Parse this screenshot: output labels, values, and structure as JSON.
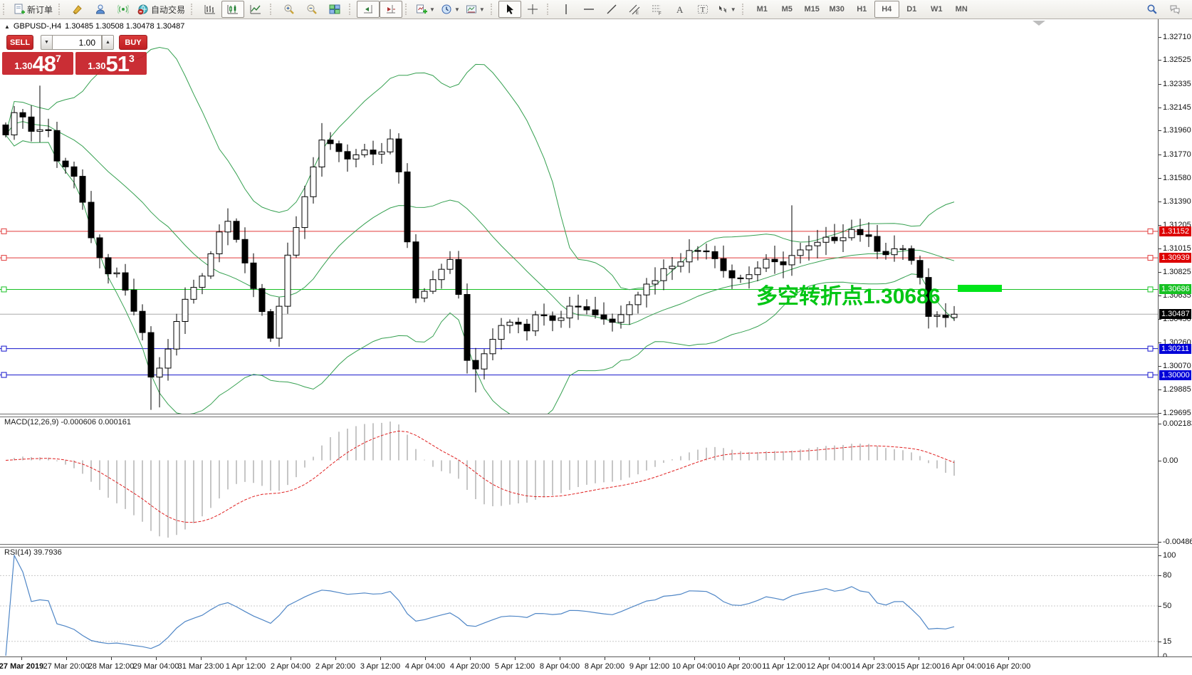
{
  "toolbar": {
    "new_order_label": "新订单",
    "autotrading_label": "自动交易",
    "icons": [
      "new-order-icon",
      "market-watch-icon",
      "navigator-icon",
      "signals-icon",
      "autotrading-icon",
      "bar-chart-icon",
      "candlestick-chart-icon",
      "line-chart-icon",
      "zoom-in-icon",
      "zoom-out-icon",
      "tile-windows-icon",
      "auto-scroll-icon",
      "chart-shift-icon",
      "indicators-icon",
      "periods-icon",
      "templates-icon",
      "cursor-icon",
      "crosshair-icon",
      "vertical-line-icon",
      "horizontal-line-icon",
      "trendline-icon",
      "channel-icon",
      "fibonacci-icon",
      "text-icon",
      "text-label-icon",
      "arrows-icon",
      "search-icon",
      "chat-icon"
    ],
    "timeframes": [
      "M1",
      "M5",
      "M15",
      "M30",
      "H1",
      "H4",
      "D1",
      "W1",
      "MN"
    ],
    "active_timeframe": "H4"
  },
  "symbol_bar": {
    "symbol": "GBPUSD-,H4",
    "quote": "1.30485 1.30508 1.30478 1.30487"
  },
  "trade_panel": {
    "sell_label": "SELL",
    "buy_label": "BUY",
    "volume": "1.00",
    "sell_prefix": "1.30",
    "sell_main": "48",
    "sell_sup": "7",
    "buy_prefix": "1.30",
    "buy_main": "51",
    "buy_sup": "3"
  },
  "annotation": {
    "text": "多空转折点1.30686",
    "color": "#00c614",
    "bar_color": "#00e51a"
  },
  "indicators": {
    "macd_label": "MACD(12,26,9) -0.000606 0.000161",
    "rsi_label": "RSI(14) 39.7936",
    "macd_axis": [
      {
        "text": "0.002183",
        "value": 0.002183
      },
      {
        "text": "0.00",
        "value": 0
      },
      {
        "text": "-0.004861",
        "value": -0.004861
      }
    ],
    "rsi_axis": [
      {
        "text": "100",
        "value": 100
      },
      {
        "text": "80",
        "value": 80
      },
      {
        "text": "50",
        "value": 50
      },
      {
        "text": "15",
        "value": 15
      },
      {
        "text": "0",
        "value": 0
      }
    ],
    "rsi_levels": [
      80,
      50,
      15
    ]
  },
  "price_axis_ticks": [
    "1.32710",
    "1.32525",
    "1.32335",
    "1.32145",
    "1.31960",
    "1.31770",
    "1.31580",
    "1.31390",
    "1.31205",
    "1.31015",
    "1.30825",
    "1.30635",
    "1.30450",
    "1.30260",
    "1.30070",
    "1.29885",
    "1.29695"
  ],
  "price_badges": [
    {
      "text": "1.31152",
      "price": 1.31152,
      "bg": "#dd0000"
    },
    {
      "text": "1.30939",
      "price": 1.30939,
      "bg": "#dd0000"
    },
    {
      "text": "1.30686",
      "price": 1.30686,
      "bg": "#17c123"
    },
    {
      "text": "1.30487",
      "price": 1.30487,
      "bg": "#000000"
    },
    {
      "text": "1.30211",
      "price": 1.30211,
      "bg": "#0000d8"
    },
    {
      "text": "1.30000",
      "price": 1.3,
      "bg": "#0000d8"
    }
  ],
  "time_axis_labels": [
    "27 Mar 2019",
    "27 Mar 20:00",
    "28 Mar 12:00",
    "29 Mar 04:00",
    "31 Mar 23:00",
    "1 Apr 12:00",
    "2 Apr 04:00",
    "2 Apr 20:00",
    "3 Apr 12:00",
    "4 Apr 04:00",
    "4 Apr 20:00",
    "5 Apr 12:00",
    "8 Apr 04:00",
    "8 Apr 20:00",
    "9 Apr 12:00",
    "10 Apr 04:00",
    "10 Apr 20:00",
    "11 Apr 12:00",
    "12 Apr 04:00",
    "14 Apr 23:00",
    "15 Apr 12:00",
    "16 Apr 04:00",
    "16 Apr 20:00"
  ],
  "chart_data": {
    "type": "candlestick",
    "symbol": "GBPUSD-",
    "timeframe": "H4",
    "quote": {
      "open": "1.30485",
      "high": "1.30508",
      "low": "1.30478",
      "close": "1.30487"
    },
    "price_range_visible": {
      "top": 1.32853,
      "bottom": 1.29672
    },
    "n_candles": 112,
    "close_path_anchors": [
      [
        0.0,
        1.3196
      ],
      [
        0.015,
        1.3215
      ],
      [
        0.03,
        1.319
      ],
      [
        0.042,
        1.3205
      ],
      [
        0.055,
        1.3168
      ],
      [
        0.068,
        1.317
      ],
      [
        0.08,
        1.3142
      ],
      [
        0.092,
        1.31
      ],
      [
        0.105,
        1.3085
      ],
      [
        0.118,
        1.3078
      ],
      [
        0.13,
        1.306
      ],
      [
        0.142,
        1.304
      ],
      [
        0.152,
        1.2998
      ],
      [
        0.163,
        1.3005
      ],
      [
        0.175,
        1.303
      ],
      [
        0.19,
        1.3062
      ],
      [
        0.205,
        1.3075
      ],
      [
        0.22,
        1.3108
      ],
      [
        0.232,
        1.3126
      ],
      [
        0.245,
        1.311
      ],
      [
        0.258,
        1.3078
      ],
      [
        0.27,
        1.3048
      ],
      [
        0.282,
        1.3022
      ],
      [
        0.294,
        1.3088
      ],
      [
        0.31,
        1.313
      ],
      [
        0.325,
        1.3165
      ],
      [
        0.336,
        1.3192
      ],
      [
        0.35,
        1.3178
      ],
      [
        0.365,
        1.317
      ],
      [
        0.38,
        1.3182
      ],
      [
        0.395,
        1.3176
      ],
      [
        0.408,
        1.319
      ],
      [
        0.418,
        1.315
      ],
      [
        0.429,
        1.3062
      ],
      [
        0.445,
        1.3072
      ],
      [
        0.46,
        1.3088
      ],
      [
        0.474,
        1.3092
      ],
      [
        0.483,
        1.302
      ],
      [
        0.493,
        1.2998
      ],
      [
        0.505,
        1.3018
      ],
      [
        0.52,
        1.304
      ],
      [
        0.535,
        1.3046
      ],
      [
        0.55,
        1.3038
      ],
      [
        0.565,
        1.3052
      ],
      [
        0.58,
        1.3045
      ],
      [
        0.6,
        1.3058
      ],
      [
        0.62,
        1.305
      ],
      [
        0.64,
        1.3042
      ],
      [
        0.66,
        1.3062
      ],
      [
        0.68,
        1.3075
      ],
      [
        0.7,
        1.3088
      ],
      [
        0.72,
        1.3098
      ],
      [
        0.74,
        1.3102
      ],
      [
        0.755,
        1.3088
      ],
      [
        0.77,
        1.3075
      ],
      [
        0.785,
        1.3082
      ],
      [
        0.8,
        1.309
      ],
      [
        0.815,
        1.3088
      ],
      [
        0.827,
        1.3095
      ],
      [
        0.842,
        1.31
      ],
      [
        0.86,
        1.3106
      ],
      [
        0.88,
        1.3112
      ],
      [
        0.895,
        1.3118
      ],
      [
        0.91,
        1.3108
      ],
      [
        0.925,
        1.3098
      ],
      [
        0.94,
        1.3102
      ],
      [
        0.952,
        1.3095
      ],
      [
        0.962,
        1.3088
      ],
      [
        0.97,
        1.3046
      ],
      [
        0.98,
        1.3044
      ],
      [
        0.99,
        1.3048
      ],
      [
        1.0,
        1.30487
      ]
    ],
    "long_wicks": [
      {
        "t": 0.04,
        "high": 1.3232
      },
      {
        "t": 0.152,
        "low": 1.2972
      },
      {
        "t": 0.163,
        "low": 1.2974
      },
      {
        "t": 0.336,
        "high": 1.3202
      },
      {
        "t": 0.493,
        "low": 1.2986
      },
      {
        "t": 0.827,
        "high": 1.3136
      }
    ],
    "h_lines": [
      {
        "price": 1.31152,
        "color": "#e03a3a"
      },
      {
        "price": 1.30939,
        "color": "#e03a3a"
      },
      {
        "price": 1.30686,
        "color": "#17c123"
      },
      {
        "price": 1.30211,
        "color": "#1414cc"
      },
      {
        "price": 1.3,
        "color": "#1414cc"
      }
    ],
    "current_price": {
      "value": 1.30487,
      "line_color": "#ababab"
    },
    "overlays": [
      {
        "name": "Bollinger Bands",
        "period": 20,
        "deviation": 2,
        "color": "#35a050"
      },
      {
        "name": "MACD",
        "params": "12,26,9",
        "main_value": -0.000606,
        "signal_value": 0.000161,
        "hist_color": "#8c8c8c",
        "signal_color": "#e02020",
        "ylim": [
          -0.004861,
          0.002183
        ]
      },
      {
        "name": "RSI",
        "period": 14,
        "current": 39.7936,
        "color": "#4f86c6",
        "ylim": [
          0,
          100
        ]
      }
    ]
  }
}
